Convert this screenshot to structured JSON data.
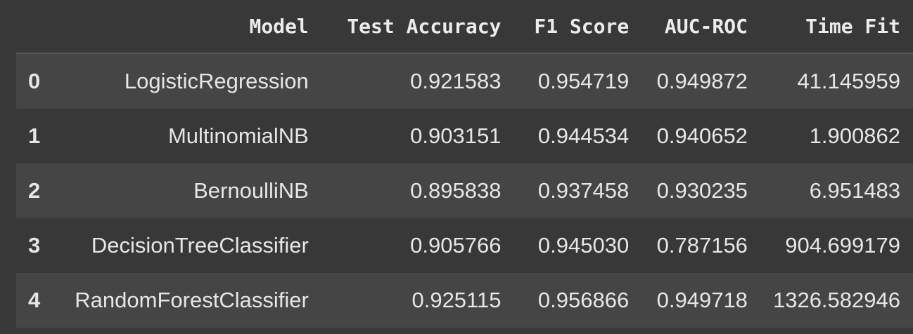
{
  "table": {
    "columns": [
      "",
      "Model",
      "Test Accuracy",
      "F1 Score",
      "AUC-ROC",
      "Time Fit"
    ],
    "rows": [
      {
        "index": "0",
        "model": "LogisticRegression",
        "test_accuracy": "0.921583",
        "f1_score": "0.954719",
        "auc_roc": "0.949872",
        "time_fit": "41.145959"
      },
      {
        "index": "1",
        "model": "MultinomialNB",
        "test_accuracy": "0.903151",
        "f1_score": "0.944534",
        "auc_roc": "0.940652",
        "time_fit": "1.900862"
      },
      {
        "index": "2",
        "model": "BernoulliNB",
        "test_accuracy": "0.895838",
        "f1_score": "0.937458",
        "auc_roc": "0.930235",
        "time_fit": "6.951483"
      },
      {
        "index": "3",
        "model": "DecisionTreeClassifier",
        "test_accuracy": "0.905766",
        "f1_score": "0.945030",
        "auc_roc": "0.787156",
        "time_fit": "904.699179"
      },
      {
        "index": "4",
        "model": "RandomForestClassifier",
        "test_accuracy": "0.925115",
        "f1_score": "0.956866",
        "auc_roc": "0.949718",
        "time_fit": "1326.582946"
      }
    ]
  },
  "colors": {
    "background": "#383838",
    "row_alt": "#454545",
    "text": "#e6e6e6"
  }
}
